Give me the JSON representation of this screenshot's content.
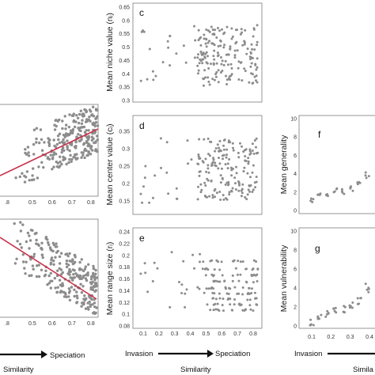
{
  "colors": {
    "points": "#8c8c8c",
    "trend": "#c8314a",
    "axis": "#7a7a7a",
    "arrow": "#111111"
  },
  "arrow_labels": {
    "start": "Invasion",
    "end": "Speciation",
    "end_short": "Speciation"
  },
  "bottom_labels": {
    "left": "Similarity",
    "middle": "Similarity",
    "right": "Simila"
  },
  "panels": [
    {
      "id": "a_partial",
      "letter": "",
      "ylabel": "",
      "xticks": [
        "0.5",
        "0.6",
        "0.7",
        "0.8"
      ]
    },
    {
      "id": "b_partial",
      "letter": "",
      "ylabel": "",
      "xticks": [
        "0.5",
        "0.6",
        "0.7",
        "0.8"
      ]
    },
    {
      "id": "c",
      "letter": "c",
      "ylabel": "Mean niche value (nᵢ)",
      "yticks": [
        "0.65",
        "0.6",
        "0.55",
        "0.5",
        "0.45",
        "0.4",
        "0.35",
        "0.3"
      ]
    },
    {
      "id": "d",
      "letter": "d",
      "ylabel": "Mean center value (cᵢ)",
      "yticks": [
        "0.35",
        "0.3",
        "0.25",
        "0.2",
        "0.15"
      ]
    },
    {
      "id": "e",
      "letter": "e",
      "ylabel": "Mean range size (rᵢ)",
      "yticks": [
        "0.24",
        "0.22",
        "0.2",
        "0.18",
        "0.16",
        "0.14",
        "0.12",
        "0.1",
        "0.08"
      ],
      "xticks": [
        "0.1",
        "0.2",
        "0.3",
        "0.4",
        "0.5",
        "0.6",
        "0.7",
        "0.8"
      ]
    },
    {
      "id": "f",
      "letter": "f",
      "ylabel": "Mean generality",
      "yticks": [
        "10",
        "8",
        "6",
        "4",
        "2",
        "0"
      ]
    },
    {
      "id": "g",
      "letter": "g",
      "ylabel": "Mean vulnerability",
      "yticks": [
        "10",
        "8",
        "6",
        "4",
        "2",
        "0"
      ],
      "xticks": [
        "0.1",
        "0.2",
        "0.3",
        "0.4"
      ]
    }
  ],
  "chart_data": [
    {
      "type": "scatter",
      "panel": "a (partially visible)",
      "xlabel": "Similarity",
      "x_range": [
        0.35,
        0.85
      ],
      "trend_line": {
        "x": [
          0.38,
          0.85
        ],
        "y": [
          0.2,
          0.7
        ]
      },
      "note_on_y": "y axis cut off in image; values in relative units 0-1",
      "density": "many points, cloud rising with similarity"
    },
    {
      "type": "scatter",
      "panel": "b (partially visible)",
      "xlabel": "Similarity",
      "x_range": [
        0.35,
        0.85
      ],
      "trend_line": {
        "x": [
          0.38,
          0.85
        ],
        "y": [
          0.9,
          0.12
        ]
      },
      "note_on_y": "y axis cut off in image; values in relative units 0-1",
      "density": "many points, cloud falling with similarity"
    },
    {
      "type": "scatter",
      "panel": "c",
      "ylabel": "Mean niche value (nᵢ)",
      "xlabel": "Similarity",
      "x_range": [
        0.05,
        0.85
      ],
      "ylim": [
        0.3,
        0.66
      ],
      "x": [
        0.1,
        0.15,
        0.2,
        0.22,
        0.25,
        0.28,
        0.3,
        0.35,
        0.4,
        0.45,
        0.48,
        0.5,
        0.55,
        0.6,
        0.65,
        0.7,
        0.72,
        0.75,
        0.78,
        0.8
      ],
      "y": [
        0.57,
        0.5,
        0.62,
        0.38,
        0.47,
        0.6,
        0.48,
        0.52,
        0.5,
        0.42,
        0.55,
        0.32,
        0.6,
        0.45,
        0.62,
        0.5,
        0.65,
        0.4,
        0.55,
        0.45
      ]
    },
    {
      "type": "scatter",
      "panel": "d",
      "ylabel": "Mean center value (cᵢ)",
      "xlabel": "Similarity",
      "x_range": [
        0.05,
        0.85
      ],
      "ylim": [
        0.15,
        0.36
      ],
      "x": [
        0.1,
        0.12,
        0.2,
        0.25,
        0.3,
        0.35,
        0.4,
        0.45,
        0.5,
        0.55,
        0.6,
        0.65,
        0.7,
        0.75,
        0.8
      ],
      "y": [
        0.34,
        0.26,
        0.3,
        0.22,
        0.27,
        0.25,
        0.28,
        0.2,
        0.24,
        0.31,
        0.26,
        0.32,
        0.22,
        0.35,
        0.27
      ]
    },
    {
      "type": "scatter",
      "panel": "e",
      "ylabel": "Mean range size (rᵢ)",
      "xlabel": "Similarity",
      "x_range": [
        0.05,
        0.85
      ],
      "ylim": [
        0.08,
        0.245
      ],
      "x": [
        0.1,
        0.15,
        0.2,
        0.25,
        0.3,
        0.35,
        0.4,
        0.45,
        0.5,
        0.55,
        0.6,
        0.65,
        0.7,
        0.75,
        0.8
      ],
      "y": [
        0.13,
        0.18,
        0.2,
        0.1,
        0.11,
        0.14,
        0.12,
        0.16,
        0.15,
        0.19,
        0.13,
        0.21,
        0.17,
        0.24,
        0.14
      ]
    },
    {
      "type": "scatter",
      "panel": "f",
      "ylabel": "Mean generality",
      "xlabel": "Similarity",
      "x_range": [
        0.05,
        0.5
      ],
      "ylim": [
        0,
        10
      ],
      "x": [
        0.1,
        0.15,
        0.2,
        0.25,
        0.3,
        0.35,
        0.4,
        0.45
      ],
      "y": [
        1.0,
        1.5,
        1.8,
        2.0,
        2.2,
        2.4,
        2.8,
        3.8
      ]
    },
    {
      "type": "scatter",
      "panel": "g",
      "ylabel": "Mean vulnerability",
      "xlabel": "Similarity",
      "x_range": [
        0.05,
        0.5
      ],
      "ylim": [
        0,
        10
      ],
      "x": [
        0.1,
        0.15,
        0.2,
        0.25,
        0.3,
        0.35,
        0.4,
        0.45
      ],
      "y": [
        0.3,
        0.8,
        1.2,
        1.5,
        1.8,
        2.1,
        2.6,
        4.0
      ]
    }
  ]
}
